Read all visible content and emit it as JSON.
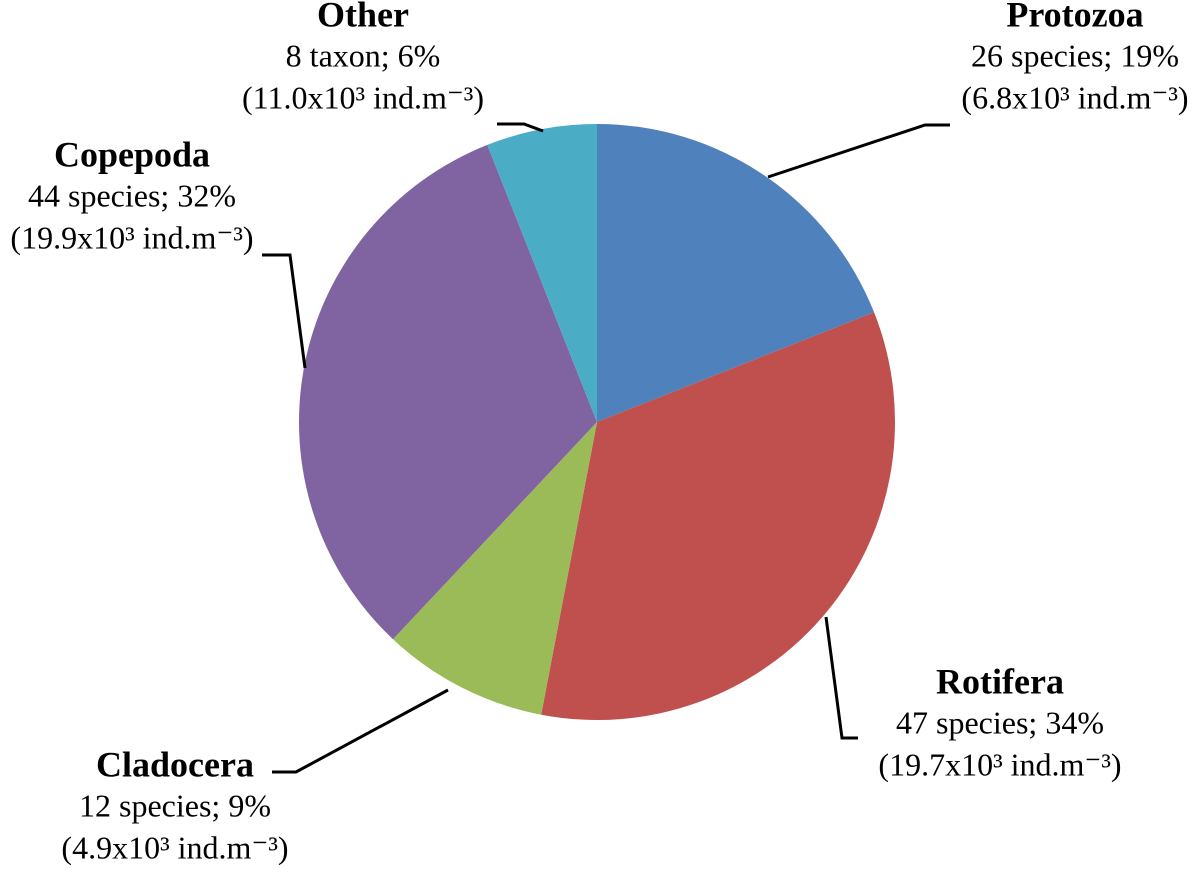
{
  "chart_data": {
    "type": "pie",
    "categories": [
      "Protozoa",
      "Rotifera",
      "Cladocera",
      "Copepoda",
      "Other"
    ],
    "values": [
      19,
      34,
      9,
      32,
      6
    ],
    "value_labels": [
      "26 species; 19%",
      "47 species; 34%",
      "12 species; 9%",
      "44 species; 32%",
      "8 taxon; 6%"
    ],
    "density_labels": [
      "(6.8x10³ ind.m⁻³)",
      "(19.7x10³ ind.m⁻³)",
      "(4.9x10³ ind.m⁻³)",
      "(19.9x10³ ind.m⁻³)",
      "(11.0x10³ ind.m⁻³)"
    ],
    "colors": [
      "#4f81bd",
      "#c0504d",
      "#9bbb59",
      "#8064a2",
      "#4bacc6"
    ]
  }
}
